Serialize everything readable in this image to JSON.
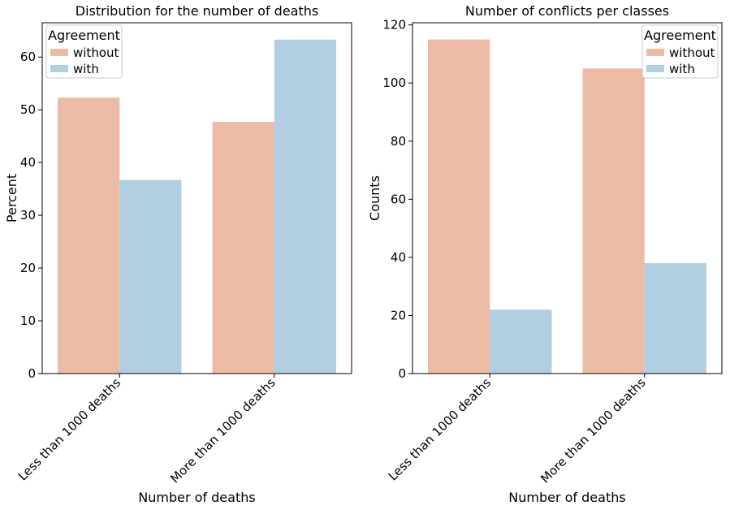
{
  "chart_data": [
    {
      "type": "bar",
      "title": "Distribution for the number of deaths",
      "xlabel": "Number of deaths",
      "ylabel": "Percent",
      "categories": [
        "Less than 1000 deaths",
        "More than 1000 deaths"
      ],
      "series": [
        {
          "name": "without",
          "values": [
            52.3,
            47.7
          ],
          "color": "#ebbba6"
        },
        {
          "name": "with",
          "values": [
            36.7,
            63.3
          ],
          "color": "#b1cfe0"
        }
      ],
      "ylim": [
        0,
        66.5
      ],
      "yticks": [
        0,
        10,
        20,
        30,
        40,
        50,
        60
      ],
      "legend": {
        "title": "Agreement",
        "placement": "top-left"
      },
      "grid": false
    },
    {
      "type": "bar",
      "title": "Number of conflicts per classes",
      "xlabel": "Number of deaths",
      "ylabel": "Counts",
      "categories": [
        "Less than 1000 deaths",
        "More than 1000 deaths"
      ],
      "series": [
        {
          "name": "without",
          "values": [
            115,
            105
          ],
          "color": "#ebbba6"
        },
        {
          "name": "with",
          "values": [
            22,
            38
          ],
          "color": "#b1cfe0"
        }
      ],
      "ylim": [
        0,
        120.75
      ],
      "yticks": [
        0,
        20,
        40,
        60,
        80,
        100,
        120
      ],
      "legend": {
        "title": "Agreement",
        "placement": "top-right"
      },
      "grid": false
    }
  ]
}
